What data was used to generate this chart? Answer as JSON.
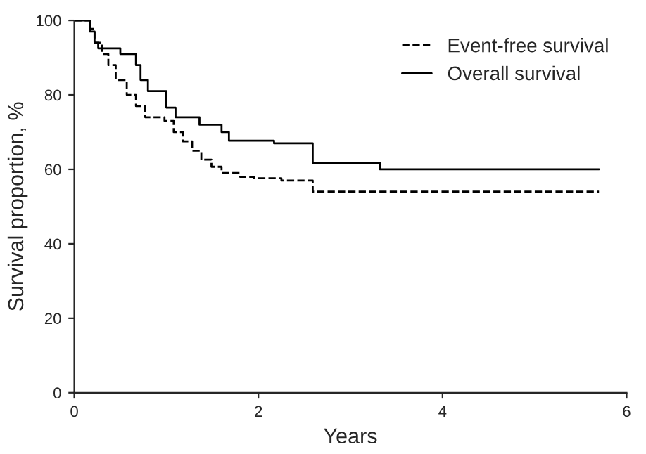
{
  "chart_data": {
    "type": "step",
    "xlabel": "Years",
    "ylabel": "Survival proportion, %",
    "xlim": [
      0,
      6
    ],
    "xticks": [
      0,
      2,
      4,
      6
    ],
    "ylim": [
      0,
      100
    ],
    "yticks": [
      0,
      20,
      40,
      60,
      80,
      100
    ],
    "grid": false,
    "legend": "top right",
    "series": [
      {
        "name": "Event-free survival",
        "color": "#000000",
        "line_style": "dashed",
        "x": [
          0,
          0.17,
          0.22,
          0.3,
          0.37,
          0.45,
          0.57,
          0.67,
          0.77,
          0.98,
          1.08,
          1.18,
          1.28,
          1.38,
          1.49,
          1.6,
          1.8,
          1.95,
          2.25,
          2.59,
          5.7
        ],
        "values": [
          100,
          97.7,
          94,
          91,
          88,
          84,
          80,
          77,
          74,
          73,
          70,
          67.5,
          65,
          62.6,
          60.7,
          59,
          58,
          57.6,
          57,
          54,
          54
        ]
      },
      {
        "name": "Overall survival",
        "color": "#000000",
        "line_style": "solid",
        "x": [
          0,
          0.17,
          0.22,
          0.26,
          0.5,
          0.67,
          0.72,
          0.8,
          1.0,
          1.1,
          1.36,
          1.6,
          1.68,
          2.17,
          2.59,
          3.32,
          5.7
        ],
        "values": [
          100,
          97,
          94,
          92.5,
          91,
          88,
          84,
          81,
          76.6,
          74,
          72,
          70,
          67.7,
          67,
          61.7,
          60,
          60
        ]
      }
    ]
  }
}
